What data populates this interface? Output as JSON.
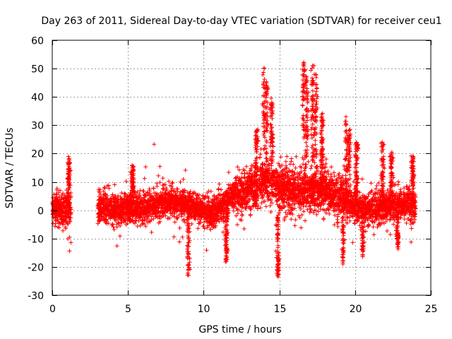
{
  "chart_data": {
    "type": "scatter",
    "title": "Day 263 of 2011, Sidereal Day-to-day VTEC variation (SDTVAR) for receiver ceu1",
    "xlabel": "GPS time / hours",
    "ylabel": "SDTVAR / TECUs",
    "xlim": [
      0,
      25
    ],
    "ylim": [
      -30,
      60
    ],
    "xticks": [
      0,
      5,
      10,
      15,
      20,
      25
    ],
    "yticks": [
      -30,
      -20,
      -10,
      0,
      10,
      20,
      30,
      40,
      50,
      60
    ],
    "xtick_labels": [
      "0",
      "5",
      "10",
      "15",
      "20",
      "25"
    ],
    "ytick_labels": [
      "-30",
      "-20",
      "-10",
      "0",
      "10",
      "20",
      "30",
      "40",
      "50",
      "60"
    ],
    "grid": true,
    "marker": "+",
    "marker_color": "#ff0000",
    "data_gap_hours": [
      1.25,
      3.0
    ],
    "series": [
      {
        "name": "SDTVAR",
        "trend": [
          [
            0.0,
            0.5
          ],
          [
            1.25,
            0.0
          ],
          [
            3.0,
            1.0
          ],
          [
            4.0,
            0.5
          ],
          [
            5.0,
            0.5
          ],
          [
            6.0,
            1.0
          ],
          [
            7.0,
            2.0
          ],
          [
            8.0,
            3.0
          ],
          [
            9.0,
            2.0
          ],
          [
            10.0,
            0.0
          ],
          [
            10.5,
            -1.0
          ],
          [
            11.0,
            1.0
          ],
          [
            12.0,
            5.0
          ],
          [
            13.0,
            7.0
          ],
          [
            14.0,
            10.0
          ],
          [
            15.0,
            8.0
          ],
          [
            16.0,
            7.0
          ],
          [
            17.0,
            7.0
          ],
          [
            18.0,
            7.0
          ],
          [
            19.0,
            5.0
          ],
          [
            20.0,
            1.0
          ],
          [
            21.0,
            0.5
          ],
          [
            22.0,
            1.0
          ],
          [
            23.0,
            2.0
          ],
          [
            24.0,
            2.0
          ]
        ],
        "spikes": [
          {
            "x": 14.0,
            "y": 50
          },
          {
            "x": 14.15,
            "y": 45
          },
          {
            "x": 14.5,
            "y": 38
          },
          {
            "x": 13.5,
            "y": 28
          },
          {
            "x": 14.9,
            "y": -23
          },
          {
            "x": 16.6,
            "y": 52
          },
          {
            "x": 16.8,
            "y": 47
          },
          {
            "x": 17.2,
            "y": 51
          },
          {
            "x": 17.4,
            "y": 48
          },
          {
            "x": 17.8,
            "y": 33
          },
          {
            "x": 19.4,
            "y": 33
          },
          {
            "x": 19.6,
            "y": 28
          },
          {
            "x": 20.1,
            "y": 24
          },
          {
            "x": 21.8,
            "y": 24
          },
          {
            "x": 22.4,
            "y": 20
          },
          {
            "x": 23.8,
            "y": 19
          },
          {
            "x": 1.1,
            "y": 18
          },
          {
            "x": 5.3,
            "y": 15
          },
          {
            "x": 9.0,
            "y": -23
          },
          {
            "x": 11.5,
            "y": -18
          },
          {
            "x": 19.2,
            "y": -19
          },
          {
            "x": 20.5,
            "y": -16
          },
          {
            "x": 22.8,
            "y": -13
          }
        ]
      }
    ]
  }
}
